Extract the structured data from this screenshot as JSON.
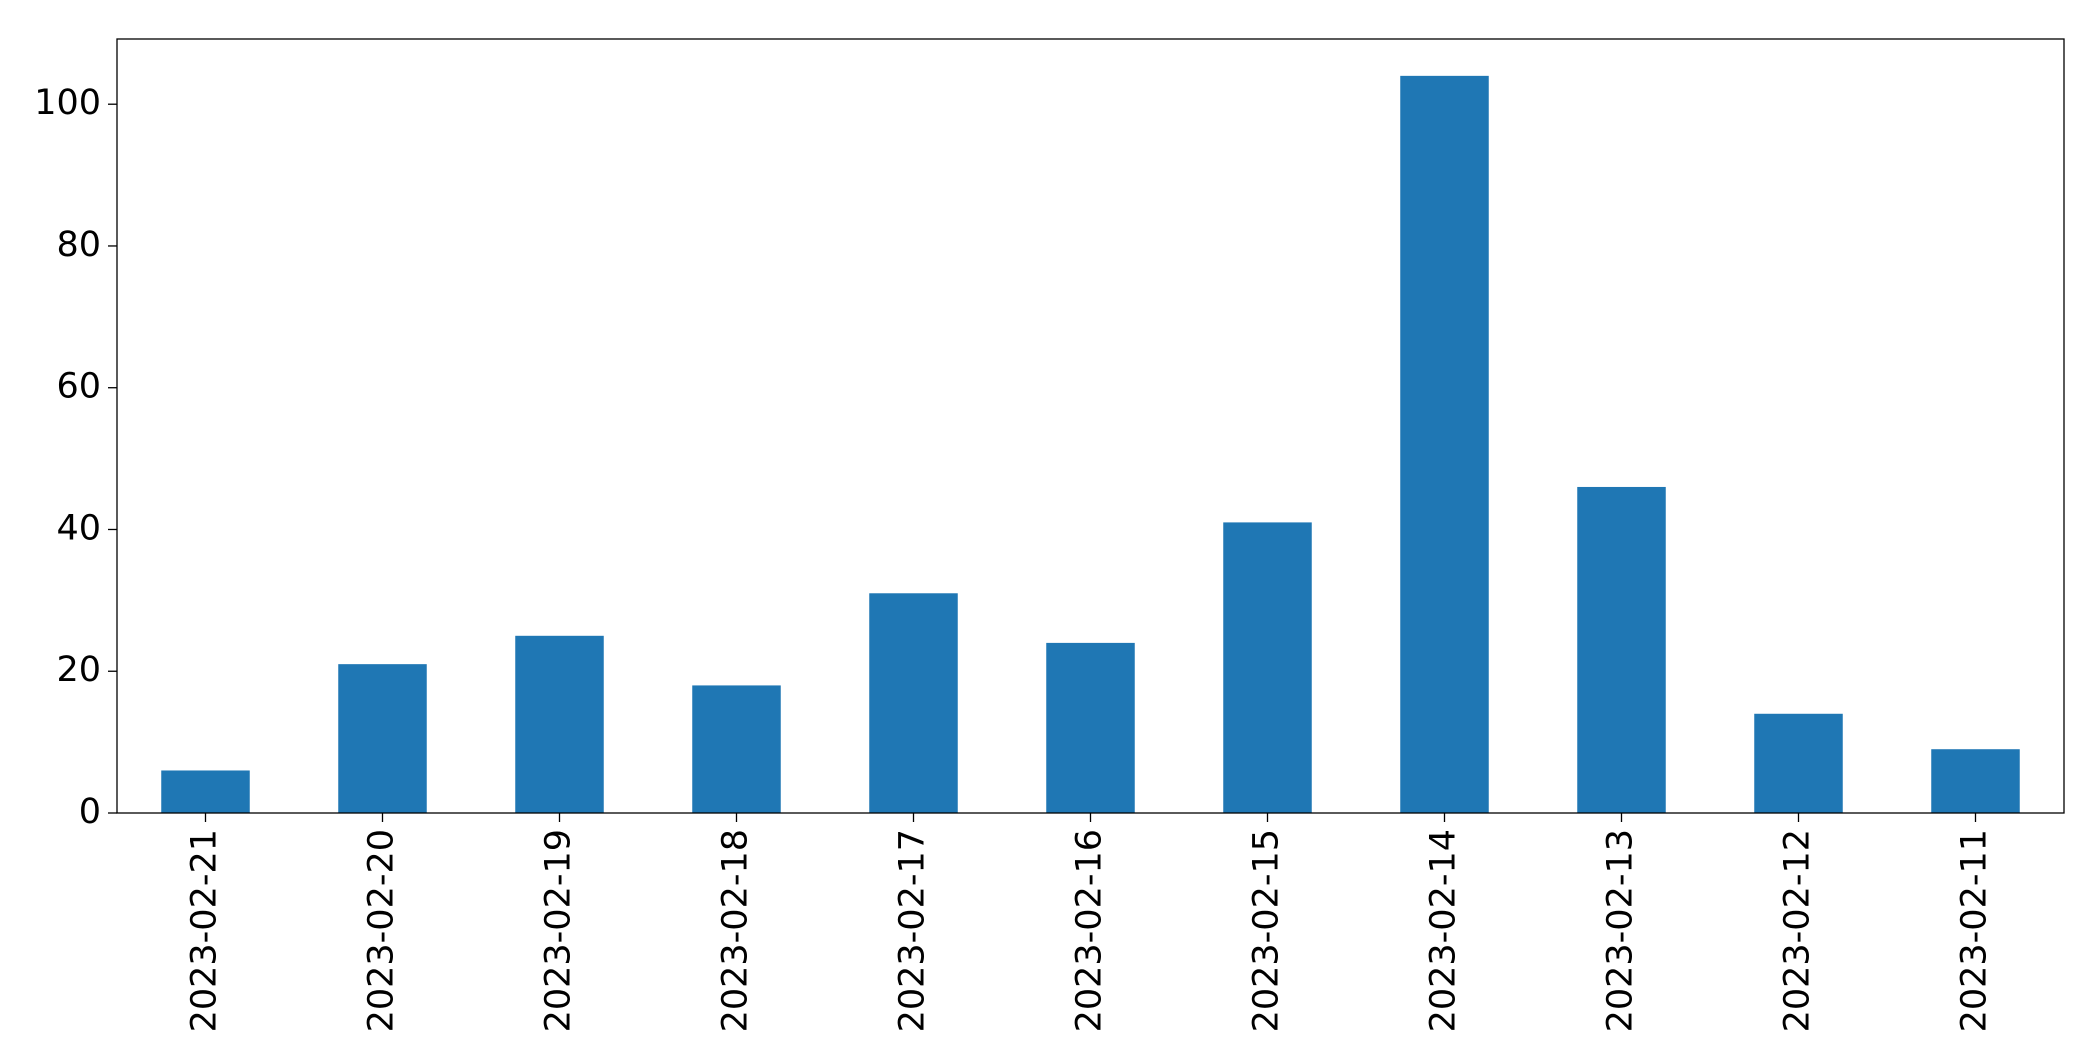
{
  "chart_data": {
    "type": "bar",
    "categories": [
      "2023-02-21",
      "2023-02-20",
      "2023-02-19",
      "2023-02-18",
      "2023-02-17",
      "2023-02-16",
      "2023-02-15",
      "2023-02-14",
      "2023-02-13",
      "2023-02-12",
      "2023-02-11"
    ],
    "values": [
      6,
      21,
      25,
      18,
      31,
      24,
      41,
      104,
      46,
      14,
      9
    ],
    "color": "#1f77b4",
    "ylim": [
      0,
      109.2
    ],
    "yticks": [
      0,
      20,
      40,
      60,
      80,
      100
    ],
    "grid": false
  }
}
